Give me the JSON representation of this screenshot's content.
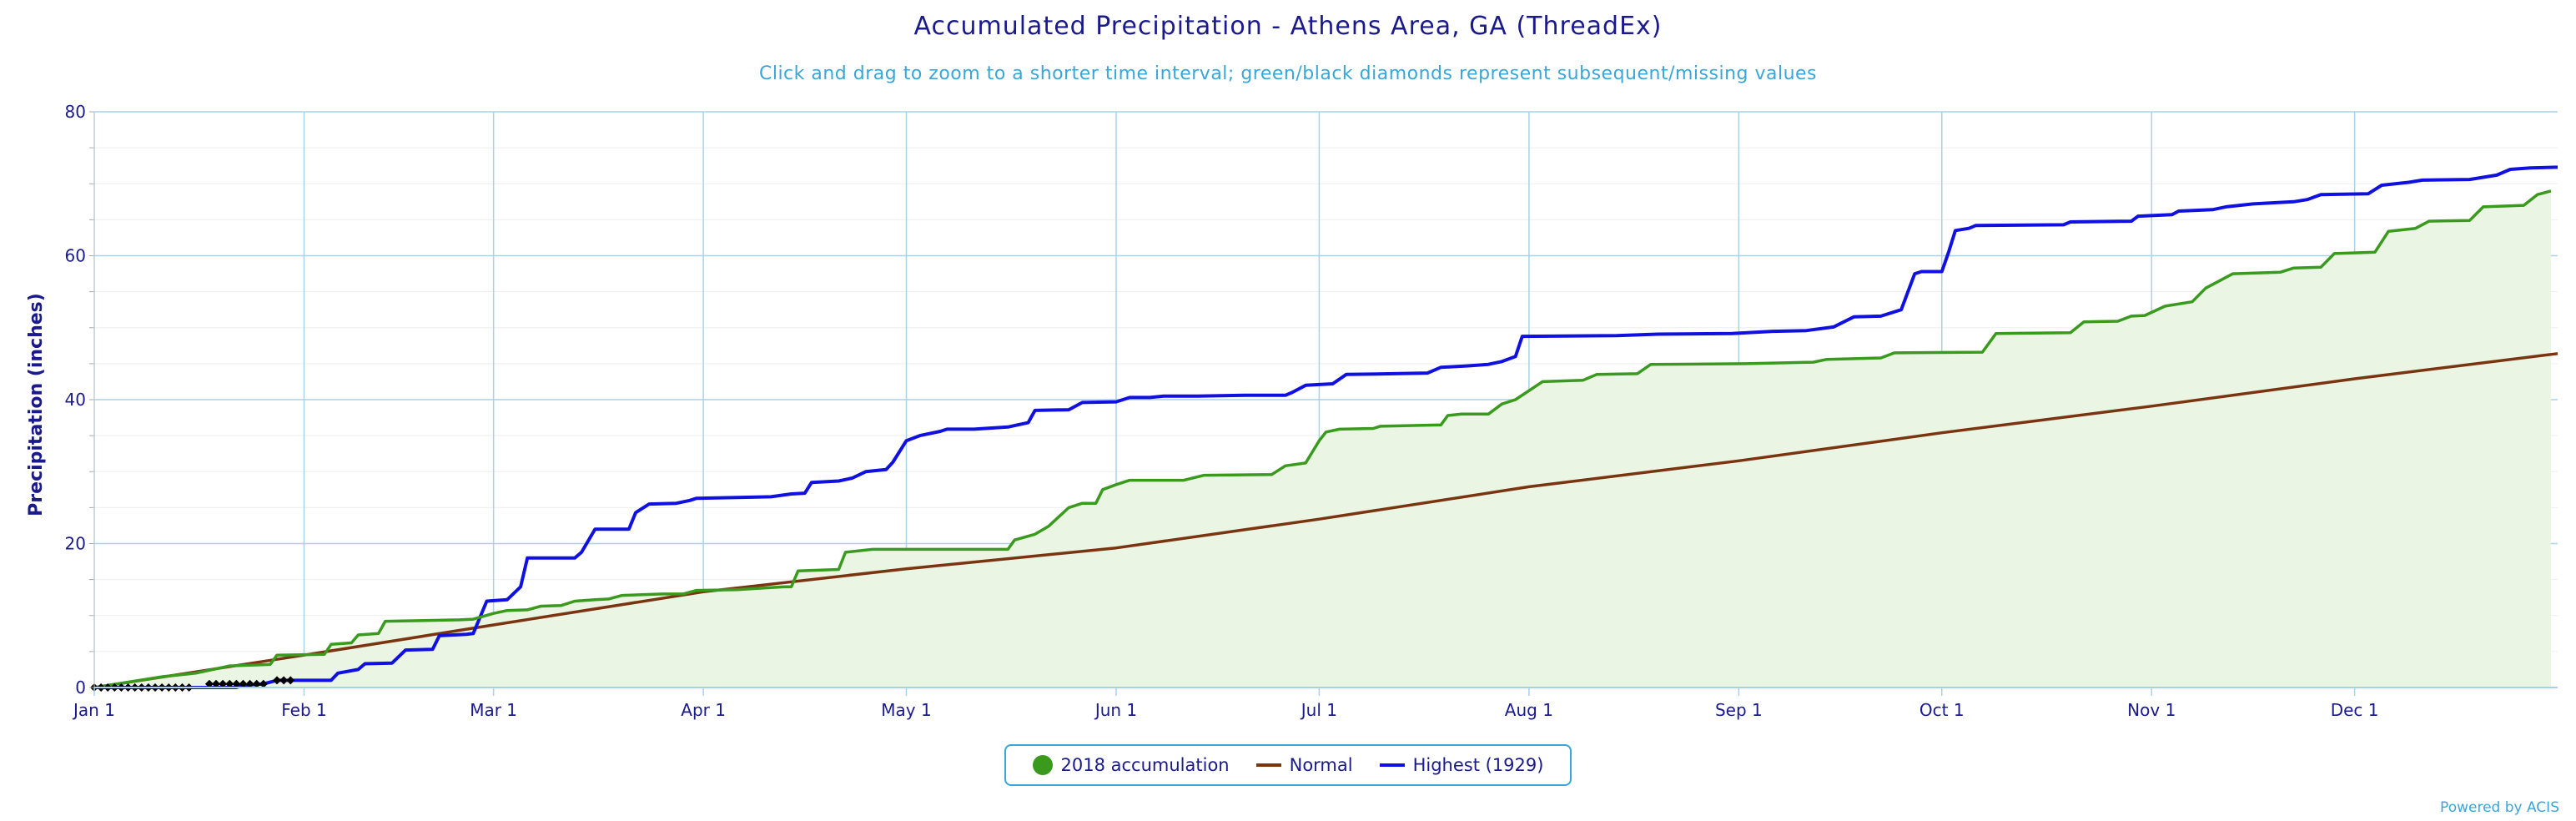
{
  "title": "Accumulated Precipitation - Athens Area, GA (ThreadEx)",
  "subtitle": "Click and drag to zoom to a shorter time interval; green/black diamonds represent subsequent/missing values",
  "credit": "Powered by ACIS",
  "colors": {
    "accumulation": "#3a9a1e",
    "accumulation_fill": "#eaf5e4",
    "normal": "#7a3410",
    "highest": "#1010e0",
    "grid": "#a9d2e8",
    "axis_text": "#1a1a8c",
    "missing": "#000000"
  },
  "chart_data": {
    "type": "area",
    "title": "Accumulated Precipitation - Athens Area, GA (ThreadEx)",
    "subtitle": "Click and drag to zoom to a shorter time interval; green/black diamonds represent subsequent/missing values",
    "ylabel": "Precipitation (inches)",
    "xlabel": "",
    "ylim": [
      0,
      80
    ],
    "y_ticks": [
      "0",
      "20",
      "40",
      "60",
      "80"
    ],
    "y_tick_values": [
      0,
      20,
      40,
      60,
      80
    ],
    "x_range_days": [
      1,
      365
    ],
    "x_ticks": [
      {
        "label": "Jan 1",
        "day": 1
      },
      {
        "label": "Feb 1",
        "day": 32
      },
      {
        "label": "Mar 1",
        "day": 60
      },
      {
        "label": "Apr 1",
        "day": 91
      },
      {
        "label": "May 1",
        "day": 121
      },
      {
        "label": "Jun 1",
        "day": 152
      },
      {
        "label": "Jul 1",
        "day": 182
      },
      {
        "label": "Aug 1",
        "day": 213
      },
      {
        "label": "Sep 1",
        "day": 244
      },
      {
        "label": "Oct 1",
        "day": 274
      },
      {
        "label": "Nov 1",
        "day": 305
      },
      {
        "label": "Dec 1",
        "day": 335
      }
    ],
    "grid": true,
    "legend_position": "bottom-center",
    "series": [
      {
        "name": "2018 accumulation",
        "kind": "area-step",
        "points": [
          [
            1,
            0
          ],
          [
            11,
            1.5
          ],
          [
            16,
            2.0
          ],
          [
            21,
            3.0
          ],
          [
            27,
            3.2
          ],
          [
            28,
            4.5
          ],
          [
            35,
            4.6
          ],
          [
            36,
            6.0
          ],
          [
            39,
            6.2
          ],
          [
            40,
            7.3
          ],
          [
            43,
            7.5
          ],
          [
            44,
            9.2
          ],
          [
            55,
            9.4
          ],
          [
            57,
            9.5
          ],
          [
            60,
            10.3
          ],
          [
            62,
            10.7
          ],
          [
            65,
            10.8
          ],
          [
            67,
            11.3
          ],
          [
            70,
            11.4
          ],
          [
            72,
            12.0
          ],
          [
            75,
            12.2
          ],
          [
            77,
            12.3
          ],
          [
            79,
            12.8
          ],
          [
            85,
            13.0
          ],
          [
            88,
            13.0
          ],
          [
            90,
            13.5
          ],
          [
            96,
            13.6
          ],
          [
            103,
            14.0
          ],
          [
            104,
            14.0
          ],
          [
            105,
            16.2
          ],
          [
            111,
            16.4
          ],
          [
            112,
            18.8
          ],
          [
            116,
            19.2
          ],
          [
            130,
            19.2
          ],
          [
            136,
            19.2
          ],
          [
            137,
            20.5
          ],
          [
            140,
            21.3
          ],
          [
            142,
            22.4
          ],
          [
            145,
            25.0
          ],
          [
            147,
            25.6
          ],
          [
            149,
            25.6
          ],
          [
            150,
            27.5
          ],
          [
            152,
            28.2
          ],
          [
            154,
            28.8
          ],
          [
            162,
            28.8
          ],
          [
            165,
            29.5
          ],
          [
            175,
            29.6
          ],
          [
            177,
            30.8
          ],
          [
            180,
            31.2
          ],
          [
            182,
            34.3
          ],
          [
            183,
            35.5
          ],
          [
            185,
            35.9
          ],
          [
            190,
            36.0
          ],
          [
            191,
            36.3
          ],
          [
            200,
            36.5
          ],
          [
            201,
            37.8
          ],
          [
            203,
            38.0
          ],
          [
            207,
            38.0
          ],
          [
            209,
            39.4
          ],
          [
            211,
            40.0
          ],
          [
            215,
            42.5
          ],
          [
            221,
            42.7
          ],
          [
            223,
            43.5
          ],
          [
            229,
            43.6
          ],
          [
            231,
            44.9
          ],
          [
            245,
            45.0
          ],
          [
            255,
            45.2
          ],
          [
            257,
            45.6
          ],
          [
            265,
            45.8
          ],
          [
            267,
            46.5
          ],
          [
            280,
            46.6
          ],
          [
            282,
            49.2
          ],
          [
            293,
            49.3
          ],
          [
            295,
            50.8
          ],
          [
            300,
            50.9
          ],
          [
            302,
            51.6
          ],
          [
            304,
            51.7
          ],
          [
            307,
            53.0
          ],
          [
            311,
            53.6
          ],
          [
            313,
            55.5
          ],
          [
            315,
            56.5
          ],
          [
            317,
            57.5
          ],
          [
            324,
            57.7
          ],
          [
            326,
            58.3
          ],
          [
            330,
            58.4
          ],
          [
            332,
            60.3
          ],
          [
            338,
            60.5
          ],
          [
            340,
            63.4
          ],
          [
            344,
            63.8
          ],
          [
            346,
            64.8
          ],
          [
            352,
            64.9
          ],
          [
            354,
            66.8
          ],
          [
            360,
            67.0
          ],
          [
            362,
            68.5
          ],
          [
            364,
            69.0
          ]
        ]
      },
      {
        "name": "Normal",
        "kind": "line",
        "points": [
          [
            1,
            0.0
          ],
          [
            32,
            4.5
          ],
          [
            60,
            8.7
          ],
          [
            91,
            13.3
          ],
          [
            121,
            16.5
          ],
          [
            152,
            19.4
          ],
          [
            182,
            23.4
          ],
          [
            213,
            27.9
          ],
          [
            244,
            31.5
          ],
          [
            274,
            35.4
          ],
          [
            305,
            39.1
          ],
          [
            335,
            42.9
          ],
          [
            365,
            46.4
          ]
        ]
      },
      {
        "name": "Highest (1929)",
        "kind": "line-step",
        "points": [
          [
            1,
            0
          ],
          [
            22,
            0
          ],
          [
            23,
            0.3
          ],
          [
            26,
            0.5
          ],
          [
            28,
            1.0
          ],
          [
            36,
            1.0
          ],
          [
            37,
            2.0
          ],
          [
            40,
            2.5
          ],
          [
            41,
            3.3
          ],
          [
            45,
            3.4
          ],
          [
            47,
            5.2
          ],
          [
            51,
            5.3
          ],
          [
            52,
            7.2
          ],
          [
            56,
            7.4
          ],
          [
            57,
            7.5
          ],
          [
            59,
            12.0
          ],
          [
            62,
            12.2
          ],
          [
            64,
            14.0
          ],
          [
            65,
            18.0
          ],
          [
            72,
            18.0
          ],
          [
            73,
            18.8
          ],
          [
            75,
            22.0
          ],
          [
            80,
            22.0
          ],
          [
            81,
            24.3
          ],
          [
            83,
            25.5
          ],
          [
            87,
            25.6
          ],
          [
            89,
            26.0
          ],
          [
            90,
            26.3
          ],
          [
            96,
            26.4
          ],
          [
            101,
            26.5
          ],
          [
            104,
            26.9
          ],
          [
            106,
            27.0
          ],
          [
            107,
            28.5
          ],
          [
            111,
            28.7
          ],
          [
            113,
            29.1
          ],
          [
            115,
            30.0
          ],
          [
            118,
            30.3
          ],
          [
            119,
            31.3
          ],
          [
            121,
            34.3
          ],
          [
            123,
            35.0
          ],
          [
            126,
            35.6
          ],
          [
            127,
            35.9
          ],
          [
            131,
            35.9
          ],
          [
            136,
            36.2
          ],
          [
            139,
            36.8
          ],
          [
            140,
            38.5
          ],
          [
            145,
            38.6
          ],
          [
            147,
            39.6
          ],
          [
            152,
            39.7
          ],
          [
            154,
            40.3
          ],
          [
            157,
            40.3
          ],
          [
            159,
            40.5
          ],
          [
            164,
            40.5
          ],
          [
            171,
            40.6
          ],
          [
            177,
            40.6
          ],
          [
            178,
            41.0
          ],
          [
            180,
            42.0
          ],
          [
            184,
            42.2
          ],
          [
            186,
            43.5
          ],
          [
            193,
            43.6
          ],
          [
            198,
            43.7
          ],
          [
            200,
            44.5
          ],
          [
            204,
            44.7
          ],
          [
            207,
            44.9
          ],
          [
            209,
            45.3
          ],
          [
            211,
            46.0
          ],
          [
            212,
            48.8
          ],
          [
            226,
            48.9
          ],
          [
            232,
            49.1
          ],
          [
            243,
            49.2
          ],
          [
            249,
            49.5
          ],
          [
            254,
            49.6
          ],
          [
            258,
            50.1
          ],
          [
            261,
            51.5
          ],
          [
            265,
            51.6
          ],
          [
            268,
            52.5
          ],
          [
            269,
            55.0
          ],
          [
            270,
            57.5
          ],
          [
            271,
            57.8
          ],
          [
            274,
            57.8
          ],
          [
            275,
            60.5
          ],
          [
            276,
            63.5
          ],
          [
            278,
            63.8
          ],
          [
            279,
            64.2
          ],
          [
            292,
            64.3
          ],
          [
            293,
            64.7
          ],
          [
            302,
            64.8
          ],
          [
            303,
            65.5
          ],
          [
            308,
            65.7
          ],
          [
            309,
            66.2
          ],
          [
            314,
            66.4
          ],
          [
            316,
            66.8
          ],
          [
            320,
            67.2
          ],
          [
            326,
            67.5
          ],
          [
            328,
            67.8
          ],
          [
            330,
            68.5
          ],
          [
            337,
            68.6
          ],
          [
            339,
            69.8
          ],
          [
            343,
            70.2
          ],
          [
            345,
            70.5
          ],
          [
            352,
            70.6
          ],
          [
            356,
            71.2
          ],
          [
            358,
            72.0
          ],
          [
            361,
            72.2
          ],
          [
            365,
            72.3
          ]
        ]
      }
    ],
    "missing_markers": {
      "description": "black diamonds",
      "points": [
        [
          1,
          0
        ],
        [
          2,
          0
        ],
        [
          3,
          0
        ],
        [
          4,
          0
        ],
        [
          5,
          0
        ],
        [
          6,
          0
        ],
        [
          7,
          0
        ],
        [
          8,
          0
        ],
        [
          9,
          0
        ],
        [
          10,
          0
        ],
        [
          11,
          0
        ],
        [
          12,
          0
        ],
        [
          13,
          0
        ],
        [
          14,
          0
        ],
        [
          15,
          0
        ],
        [
          18,
          0.5
        ],
        [
          19,
          0.5
        ],
        [
          20,
          0.5
        ],
        [
          21,
          0.5
        ],
        [
          22,
          0.5
        ],
        [
          23,
          0.5
        ],
        [
          24,
          0.5
        ],
        [
          25,
          0.5
        ],
        [
          26,
          0.5
        ],
        [
          28,
          1.0
        ],
        [
          29,
          1.0
        ],
        [
          30,
          1.0
        ]
      ]
    }
  }
}
